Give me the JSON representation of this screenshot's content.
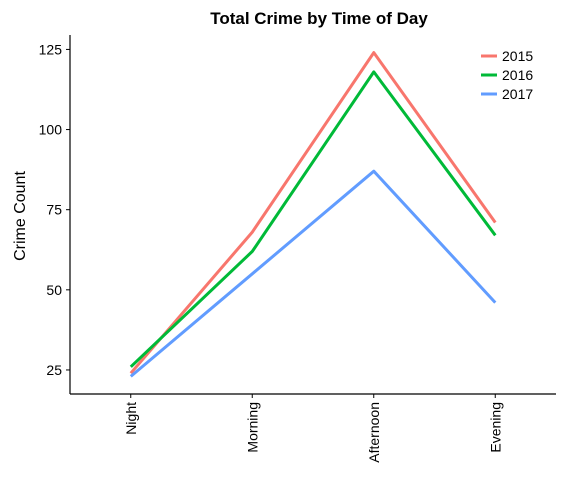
{
  "chart_data": {
    "type": "line",
    "title": "Total Crime by Time of Day",
    "xlabel": "",
    "ylabel": "Crime Count",
    "categories": [
      "Night",
      "Morning",
      "Afternoon",
      "Evening"
    ],
    "ylim": [
      17.5,
      129.5
    ],
    "yticks": [
      25,
      50,
      75,
      100,
      125
    ],
    "grid": false,
    "legend_position": "top-right",
    "series": [
      {
        "name": "2015",
        "color": "#F8766D",
        "values": [
          24,
          68,
          124,
          71
        ]
      },
      {
        "name": "2016",
        "color": "#00BA38",
        "values": [
          26,
          62,
          118,
          67
        ]
      },
      {
        "name": "2017",
        "color": "#619CFF",
        "values": [
          23,
          55,
          87,
          46
        ]
      }
    ]
  }
}
